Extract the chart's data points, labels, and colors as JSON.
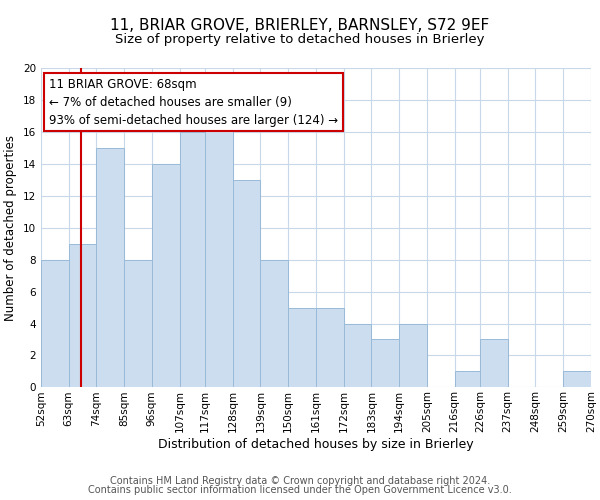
{
  "title": "11, BRIAR GROVE, BRIERLEY, BARNSLEY, S72 9EF",
  "subtitle": "Size of property relative to detached houses in Brierley",
  "xlabel": "Distribution of detached houses by size in Brierley",
  "ylabel": "Number of detached properties",
  "bar_color": "#ccddf0",
  "bar_edge_color": "#99bbd8",
  "grid_color": "#c8d8e8",
  "background_color": "#ffffff",
  "bins": [
    52,
    63,
    74,
    85,
    96,
    107,
    117,
    128,
    139,
    150,
    161,
    172,
    183,
    194,
    205,
    216,
    226,
    237,
    248,
    259,
    270
  ],
  "bin_labels": [
    "52sqm",
    "63sqm",
    "74sqm",
    "85sqm",
    "96sqm",
    "107sqm",
    "117sqm",
    "128sqm",
    "139sqm",
    "150sqm",
    "161sqm",
    "172sqm",
    "183sqm",
    "194sqm",
    "205sqm",
    "216sqm",
    "226sqm",
    "237sqm",
    "248sqm",
    "259sqm",
    "270sqm"
  ],
  "counts": [
    8,
    9,
    15,
    8,
    14,
    16,
    17,
    13,
    8,
    5,
    5,
    4,
    3,
    4,
    0,
    1,
    3,
    0,
    0,
    1
  ],
  "ylim": [
    0,
    20
  ],
  "yticks": [
    0,
    2,
    4,
    6,
    8,
    10,
    12,
    14,
    16,
    18,
    20
  ],
  "property_size": 68,
  "marker_line_color": "#cc0000",
  "annotation_line1": "11 BRIAR GROVE: 68sqm",
  "annotation_line2": "← 7% of detached houses are smaller (9)",
  "annotation_line3": "93% of semi-detached houses are larger (124) →",
  "annotation_box_color": "#ffffff",
  "annotation_box_edge_color": "#cc0000",
  "footer_line1": "Contains HM Land Registry data © Crown copyright and database right 2024.",
  "footer_line2": "Contains public sector information licensed under the Open Government Licence v3.0.",
  "title_fontsize": 11,
  "subtitle_fontsize": 9.5,
  "annotation_fontsize": 8.5,
  "ylabel_fontsize": 8.5,
  "xlabel_fontsize": 9,
  "footer_fontsize": 7,
  "tick_fontsize": 7.5
}
